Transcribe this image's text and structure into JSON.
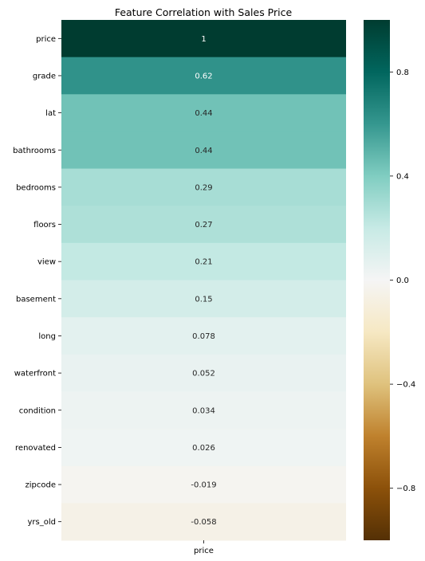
{
  "chart_data": {
    "type": "heatmap",
    "title": "Feature Correlation with Sales Price",
    "columns": [
      "price"
    ],
    "rows": [
      "price",
      "grade",
      "lat",
      "bathrooms",
      "bedrooms",
      "floors",
      "view",
      "basement",
      "long",
      "waterfront",
      "condition",
      "renovated",
      "zipcode",
      "yrs_old"
    ],
    "values": [
      1,
      0.62,
      0.44,
      0.44,
      0.29,
      0.27,
      0.21,
      0.15,
      0.078,
      0.052,
      0.034,
      0.026,
      -0.019,
      -0.058
    ],
    "value_labels": [
      "1",
      "0.62",
      "0.44",
      "0.44",
      "0.29",
      "0.27",
      "0.21",
      "0.15",
      "0.078",
      "0.052",
      "0.034",
      "0.026",
      "-0.019",
      "-0.058"
    ],
    "colorbar": {
      "vmin": -1,
      "vmax": 1,
      "ticks": [
        0.8,
        0.4,
        0.0,
        -0.4,
        -0.8
      ],
      "tick_labels": [
        "0.8",
        "0.4",
        "0.0",
        "−0.4",
        "−0.8"
      ],
      "colormap": "BrBG",
      "stops": [
        "#543005",
        "#8c510a",
        "#bf812d",
        "#dfc27d",
        "#f6e8c3",
        "#f5f5f5",
        "#c7eae5",
        "#80cdc1",
        "#35978f",
        "#01665e",
        "#003c30"
      ]
    },
    "xlabel": "",
    "ylabel": ""
  }
}
